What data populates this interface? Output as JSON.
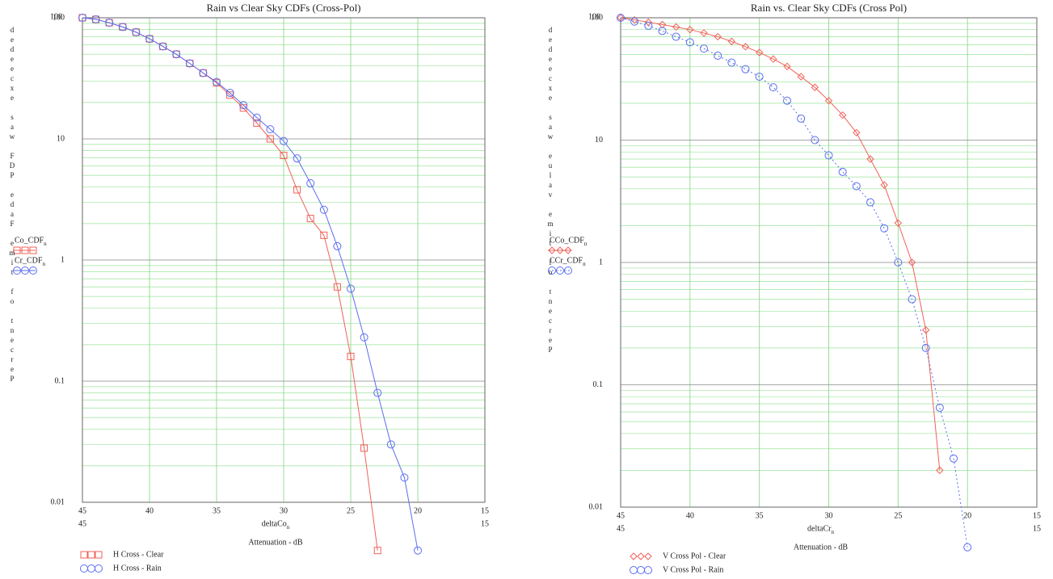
{
  "chart_data": [
    {
      "type": "line",
      "title": "Rain vs Clear Sky CDFs (Cross-Pol)",
      "y_label": "Percent of time Fade PDF was exceeded",
      "x_expr": "deltaCo",
      "x_expr_sub": "n",
      "x_label": "Attenuation - dB",
      "log_y": true,
      "grid": true,
      "xlim": [
        45,
        15
      ],
      "xticks": [
        45,
        40,
        35,
        30,
        25,
        20,
        15
      ],
      "ylim": [
        0.01,
        100
      ],
      "yticks": [
        100,
        10,
        1,
        0.1,
        0.01
      ],
      "x": [
        45,
        44,
        43,
        42,
        41,
        40,
        39,
        38,
        37,
        36,
        35,
        34,
        33,
        32,
        31,
        30,
        29,
        28,
        27,
        26,
        25,
        24,
        23,
        22,
        21,
        20
      ],
      "series": [
        {
          "name": "H Cross - Clear",
          "trace_label": "Co_CDF",
          "trace_sub": "n",
          "color": "#f0625a",
          "marker": "square",
          "dash": false,
          "values": [
            100,
            97,
            91,
            84,
            76,
            67,
            58,
            50,
            42,
            35,
            29,
            23,
            18,
            13.5,
            10,
            7.3,
            3.8,
            2.2,
            1.6,
            0.6,
            0.16,
            0.028,
            0.004,
            null,
            null,
            null
          ]
        },
        {
          "name": "H Cross - Rain",
          "trace_label": "Cr_CDF",
          "trace_sub": "n",
          "color": "#5a6ef0",
          "marker": "circle",
          "dash": false,
          "values": [
            100,
            97,
            91,
            84,
            76,
            67,
            58,
            50,
            42,
            35,
            29.5,
            24,
            19,
            15,
            12,
            9.6,
            6.9,
            4.3,
            2.6,
            1.3,
            0.58,
            0.23,
            0.08,
            0.03,
            0.016,
            0.004
          ]
        }
      ]
    },
    {
      "type": "line",
      "title": "Rain vs. Clear Sky CDFs (Cross Pol)",
      "y_label": "Percent of time value was exceeded",
      "x_expr": "deltaCr",
      "x_expr_sub": "n",
      "x_label": "Attenuation - dB",
      "log_y": true,
      "grid": true,
      "xlim": [
        45,
        15
      ],
      "xticks": [
        45,
        40,
        35,
        30,
        25,
        20,
        15
      ],
      "ylim": [
        0.01,
        100
      ],
      "yticks": [
        100,
        10,
        1,
        0.1,
        0.01
      ],
      "x": [
        45,
        44,
        43,
        42,
        41,
        40,
        39,
        38,
        37,
        36,
        35,
        34,
        33,
        32,
        31,
        30,
        29,
        28,
        27,
        26,
        25,
        24,
        23,
        22,
        21,
        20
      ],
      "series": [
        {
          "name": "V Cross Pol - Clear",
          "trace_label": "CCo_CDF",
          "trace_sub": "n",
          "color": "#f0625a",
          "marker": "diamond",
          "dash": false,
          "values": [
            100,
            96,
            92,
            88,
            84,
            80,
            75,
            70,
            64,
            58,
            52,
            46,
            40,
            33,
            27,
            21,
            16,
            11.5,
            7,
            4.3,
            2.1,
            1.0,
            0.28,
            0.02,
            null,
            null
          ]
        },
        {
          "name": "V Cross Pol - Rain",
          "trace_label": "CCr_CDF",
          "trace_sub": "n",
          "color": "#5a6ef0",
          "marker": "circle",
          "dash": true,
          "values": [
            100,
            93,
            86,
            78,
            70,
            63,
            56,
            49,
            43,
            38,
            33,
            27,
            21,
            15,
            10,
            7.5,
            5.5,
            4.2,
            3.1,
            1.9,
            1.0,
            0.5,
            0.2,
            0.065,
            0.025,
            0.0047
          ]
        }
      ]
    }
  ]
}
